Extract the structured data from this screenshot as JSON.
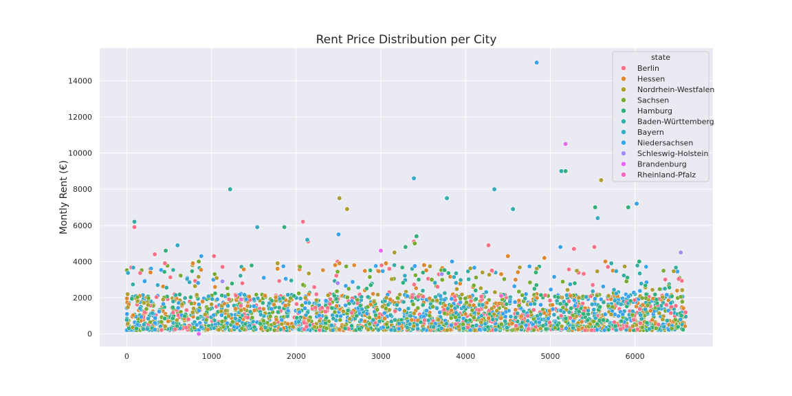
{
  "chart_data": {
    "type": "scatter",
    "title": "Rent Price Distribution per City",
    "xlabel": "",
    "ylabel": "Montly Rent (€)",
    "xlim": [
      -320,
      6920
    ],
    "ylim": [
      -700,
      15800
    ],
    "xticks": [
      0,
      1000,
      2000,
      3000,
      4000,
      5000,
      6000
    ],
    "yticks": [
      0,
      2000,
      4000,
      6000,
      8000,
      10000,
      12000,
      14000
    ],
    "grid": true,
    "background": "#eaeaf2",
    "legend": {
      "title": "state",
      "placement": "top-right"
    },
    "series": [
      {
        "name": "Berlin",
        "color": "#f77189",
        "points": [
          [
            90,
            5900
          ],
          [
            1030,
            4300
          ],
          [
            2080,
            6200
          ],
          [
            2140,
            5100
          ],
          [
            3390,
            5100
          ],
          [
            4270,
            4900
          ],
          [
            5280,
            4700
          ],
          [
            5520,
            4800
          ],
          [
            330,
            4400
          ],
          [
            450,
            3900
          ],
          [
            2490,
            4000
          ],
          [
            1130,
            3700
          ],
          [
            4310,
            3500
          ],
          [
            5680,
            3700
          ]
        ]
      },
      {
        "name": "Hessen",
        "color": "#dc8932",
        "points": [
          [
            280,
            3400
          ],
          [
            780,
            3900
          ],
          [
            1780,
            3600
          ],
          [
            2460,
            3800
          ],
          [
            3060,
            3900
          ],
          [
            4500,
            4300
          ],
          [
            4930,
            4200
          ],
          [
            5650,
            4000
          ],
          [
            2510,
            3900
          ],
          [
            4420,
            3300
          ],
          [
            4590,
            3000
          ],
          [
            3510,
            3800
          ]
        ]
      },
      {
        "name": "Nordrhein-Westfalen",
        "color": "#ae9d31",
        "points": [
          [
            2510,
            7500
          ],
          [
            2600,
            6900
          ],
          [
            5600,
            8500
          ],
          [
            3160,
            4500
          ],
          [
            4840,
            3600
          ],
          [
            1780,
            3900
          ]
        ]
      },
      {
        "name": "Sachsen",
        "color": "#77ab31",
        "points": [
          [
            3400,
            5000
          ],
          [
            850,
            4000
          ],
          [
            3600,
            3000
          ],
          [
            5900,
            2900
          ]
        ]
      },
      {
        "name": "Hamburg",
        "color": "#33b07a",
        "points": [
          [
            1860,
            5900
          ],
          [
            5180,
            9000
          ],
          [
            5530,
            7000
          ],
          [
            5920,
            7000
          ],
          [
            3420,
            5400
          ],
          [
            460,
            4600
          ],
          [
            4830,
            3400
          ],
          [
            6050,
            4000
          ],
          [
            3290,
            4800
          ],
          [
            2880,
            2700
          ]
        ]
      },
      {
        "name": "Baden-Württemberg",
        "color": "#36ada4",
        "points": [
          [
            1220,
            8000
          ],
          [
            5130,
            9000
          ],
          [
            4560,
            6900
          ],
          [
            3780,
            7500
          ],
          [
            90,
            6200
          ],
          [
            5720,
            3900
          ]
        ]
      },
      {
        "name": "Bayern",
        "color": "#38a9c5",
        "points": [
          [
            3390,
            8600
          ],
          [
            4340,
            8000
          ],
          [
            1540,
            5900
          ],
          [
            5560,
            6400
          ],
          [
            600,
            4900
          ],
          [
            2130,
            5200
          ]
        ]
      },
      {
        "name": "Niedersachsen",
        "color": "#3ba3ec",
        "points": [
          [
            4840,
            15000
          ],
          [
            6020,
            7200
          ],
          [
            2500,
            5500
          ],
          [
            880,
            4300
          ],
          [
            5120,
            4800
          ],
          [
            3840,
            4000
          ],
          [
            3400,
            3750
          ]
        ]
      },
      {
        "name": "Schleswig-Holstein",
        "color": "#a48cf4",
        "points": [
          [
            6540,
            4500
          ],
          [
            1130,
            2900
          ],
          [
            2490,
            2800
          ],
          [
            3720,
            3300
          ]
        ]
      },
      {
        "name": "Brandenburg",
        "color": "#e866f4",
        "points": [
          [
            5180,
            10500
          ],
          [
            3000,
            4600
          ],
          [
            850,
            0
          ]
        ]
      },
      {
        "name": "Rheinland-Pfalz",
        "color": "#f668c2",
        "points": [
          [
            4420,
            2100
          ],
          [
            1350,
            1900
          ]
        ]
      }
    ]
  }
}
